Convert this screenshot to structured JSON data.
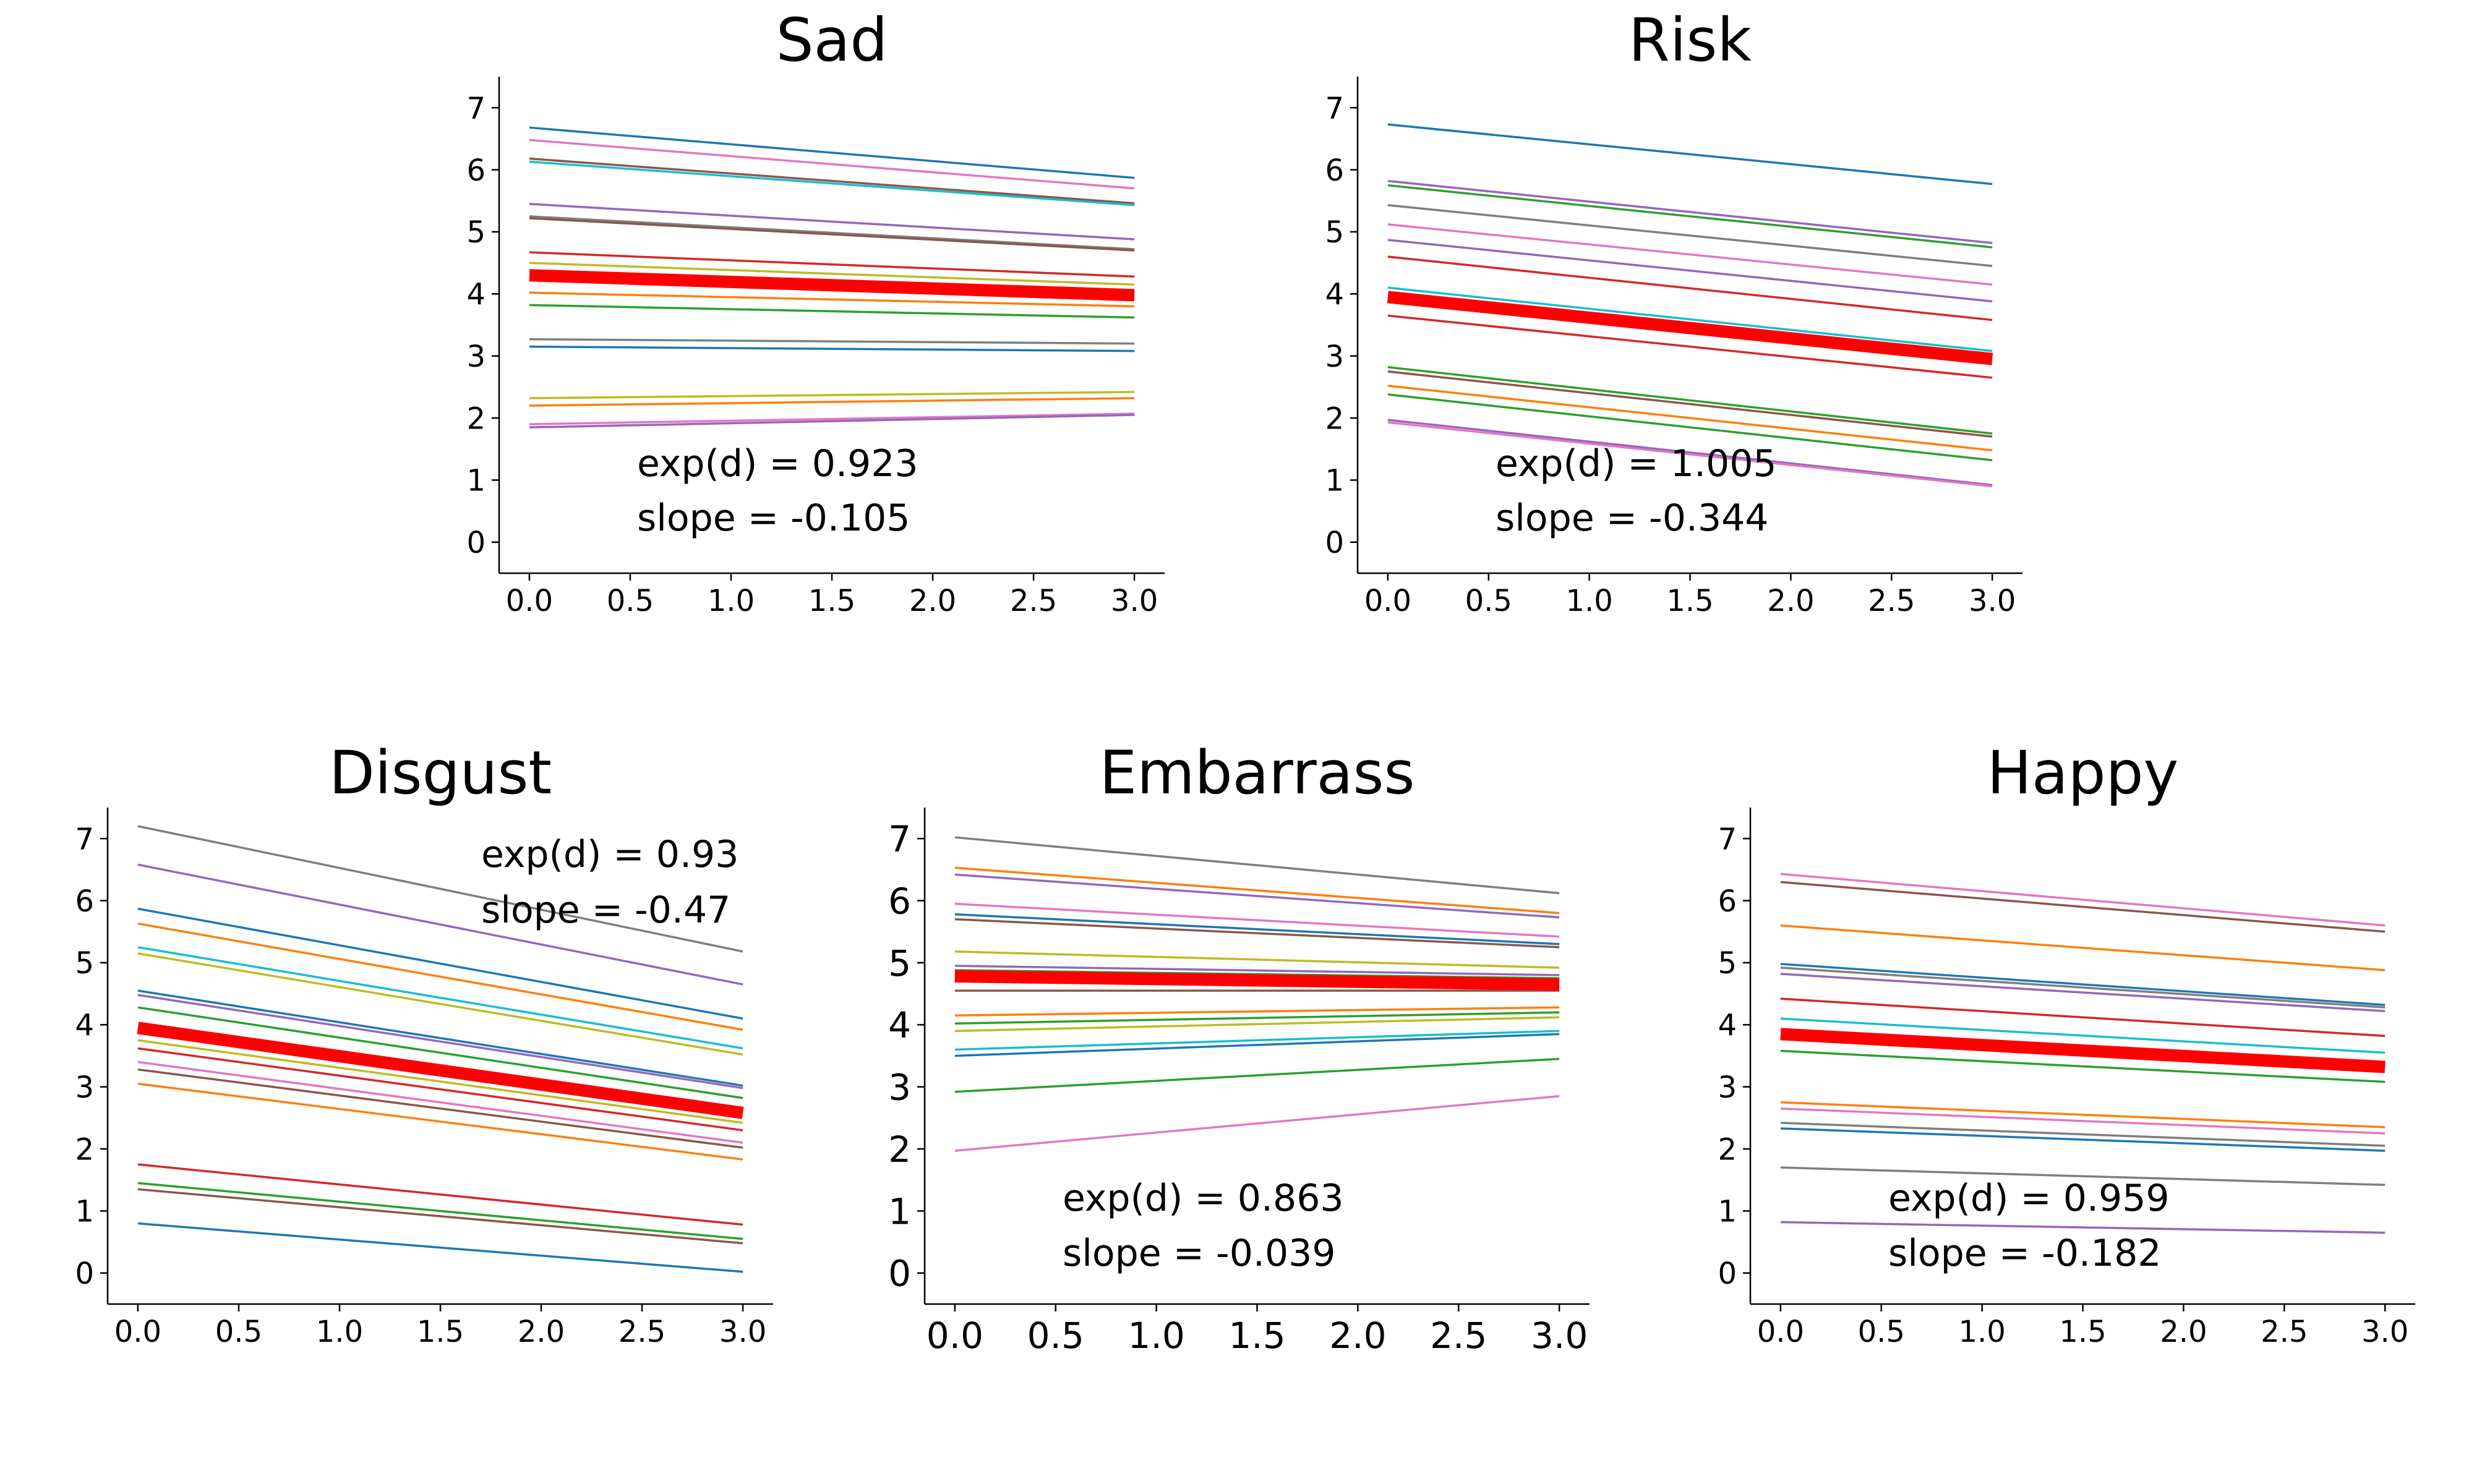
{
  "chart_data": [
    {
      "type": "line",
      "title": "Sad",
      "xlim": [
        -0.15,
        3.15
      ],
      "ylim": [
        -0.5,
        7.5
      ],
      "xticks": [
        0.0,
        0.5,
        1.0,
        1.5,
        2.0,
        2.5,
        3.0
      ],
      "xtick_labels": [
        "0.0",
        "0.5",
        "1.0",
        "1.5",
        "2.0",
        "2.5",
        "3.0"
      ],
      "yticks": [
        0,
        1,
        2,
        3,
        4,
        5,
        6,
        7
      ],
      "ytick_labels": [
        "0",
        "1",
        "2",
        "3",
        "4",
        "5",
        "6",
        "7"
      ],
      "annotations": [
        "exp(d) = 0.923",
        "slope = -0.105"
      ],
      "annotation_position": "lower-left",
      "mean_line": {
        "x": [
          0,
          3
        ],
        "y": [
          4.3,
          3.98
        ],
        "color": "#ff0000"
      },
      "series": [
        {
          "color": "#1f77b4",
          "x": [
            0,
            3
          ],
          "y": [
            6.68,
            5.87
          ]
        },
        {
          "color": "#e377c2",
          "x": [
            0,
            3
          ],
          "y": [
            6.48,
            5.7
          ]
        },
        {
          "color": "#8c564b",
          "x": [
            0,
            3
          ],
          "y": [
            6.18,
            5.46
          ]
        },
        {
          "color": "#17becf",
          "x": [
            0,
            3
          ],
          "y": [
            6.13,
            5.43
          ]
        },
        {
          "color": "#9467bd",
          "x": [
            0,
            3
          ],
          "y": [
            5.45,
            4.88
          ]
        },
        {
          "color": "#7f7f7f",
          "x": [
            0,
            3
          ],
          "y": [
            5.25,
            4.72
          ]
        },
        {
          "color": "#8c564b",
          "x": [
            0,
            3
          ],
          "y": [
            5.22,
            4.7
          ]
        },
        {
          "color": "#d62728",
          "x": [
            0,
            3
          ],
          "y": [
            4.67,
            4.28
          ]
        },
        {
          "color": "#bcbd22",
          "x": [
            0,
            3
          ],
          "y": [
            4.5,
            4.15
          ]
        },
        {
          "color": "#ff7f0e",
          "x": [
            0,
            3
          ],
          "y": [
            4.02,
            3.8
          ]
        },
        {
          "color": "#2ca02c",
          "x": [
            0,
            3
          ],
          "y": [
            3.82,
            3.62
          ]
        },
        {
          "color": "#7f7f7f",
          "x": [
            0,
            3
          ],
          "y": [
            3.27,
            3.2
          ]
        },
        {
          "color": "#1f77b4",
          "x": [
            0,
            3
          ],
          "y": [
            3.15,
            3.08
          ]
        },
        {
          "color": "#bcbd22",
          "x": [
            0,
            3
          ],
          "y": [
            2.32,
            2.42
          ]
        },
        {
          "color": "#ff7f0e",
          "x": [
            0,
            3
          ],
          "y": [
            2.2,
            2.32
          ]
        },
        {
          "color": "#e377c2",
          "x": [
            0,
            3
          ],
          "y": [
            1.9,
            2.07
          ]
        },
        {
          "color": "#9467bd",
          "x": [
            0,
            3
          ],
          "y": [
            1.85,
            2.05
          ]
        }
      ]
    },
    {
      "type": "line",
      "title": "Risk",
      "xlim": [
        -0.15,
        3.15
      ],
      "ylim": [
        -0.5,
        7.5
      ],
      "xticks": [
        0.0,
        0.5,
        1.0,
        1.5,
        2.0,
        2.5,
        3.0
      ],
      "xtick_labels": [
        "0.0",
        "0.5",
        "1.0",
        "1.5",
        "2.0",
        "2.5",
        "3.0"
      ],
      "yticks": [
        0,
        1,
        2,
        3,
        4,
        5,
        6,
        7
      ],
      "ytick_labels": [
        "0",
        "1",
        "2",
        "3",
        "4",
        "5",
        "6",
        "7"
      ],
      "annotations": [
        "exp(d) = 1.005",
        "slope = -0.344"
      ],
      "annotation_position": "lower-left",
      "mean_line": {
        "x": [
          0,
          3
        ],
        "y": [
          3.95,
          2.95
        ],
        "color": "#ff0000"
      },
      "series": [
        {
          "color": "#1f77b4",
          "x": [
            0,
            3
          ],
          "y": [
            6.73,
            5.77
          ]
        },
        {
          "color": "#9467bd",
          "x": [
            0,
            3
          ],
          "y": [
            5.82,
            4.82
          ]
        },
        {
          "color": "#2ca02c",
          "x": [
            0,
            3
          ],
          "y": [
            5.75,
            4.75
          ]
        },
        {
          "color": "#7f7f7f",
          "x": [
            0,
            3
          ],
          "y": [
            5.43,
            4.45
          ]
        },
        {
          "color": "#e377c2",
          "x": [
            0,
            3
          ],
          "y": [
            5.12,
            4.15
          ]
        },
        {
          "color": "#9467bd",
          "x": [
            0,
            3
          ],
          "y": [
            4.87,
            3.88
          ]
        },
        {
          "color": "#d62728",
          "x": [
            0,
            3
          ],
          "y": [
            4.6,
            3.58
          ]
        },
        {
          "color": "#17becf",
          "x": [
            0,
            3
          ],
          "y": [
            4.1,
            3.08
          ]
        },
        {
          "color": "#bcbd22",
          "x": [
            0,
            3
          ],
          "y": [
            3.92,
            2.88
          ]
        },
        {
          "color": "#d62728",
          "x": [
            0,
            3
          ],
          "y": [
            3.65,
            2.65
          ]
        },
        {
          "color": "#2ca02c",
          "x": [
            0,
            3
          ],
          "y": [
            2.82,
            1.75
          ]
        },
        {
          "color": "#8c564b",
          "x": [
            0,
            3
          ],
          "y": [
            2.75,
            1.7
          ]
        },
        {
          "color": "#ff7f0e",
          "x": [
            0,
            3
          ],
          "y": [
            2.52,
            1.48
          ]
        },
        {
          "color": "#2ca02c",
          "x": [
            0,
            3
          ],
          "y": [
            2.38,
            1.32
          ]
        },
        {
          "color": "#9467bd",
          "x": [
            0,
            3
          ],
          "y": [
            1.97,
            0.92
          ]
        },
        {
          "color": "#e377c2",
          "x": [
            0,
            3
          ],
          "y": [
            1.93,
            0.9
          ]
        }
      ]
    },
    {
      "type": "line",
      "title": "Disgust",
      "xlim": [
        -0.15,
        3.15
      ],
      "ylim": [
        -0.5,
        7.5
      ],
      "xticks": [
        0.0,
        0.5,
        1.0,
        1.5,
        2.0,
        2.5,
        3.0
      ],
      "xtick_labels": [
        "0.0",
        "0.5",
        "1.0",
        "1.5",
        "2.0",
        "2.5",
        "3.0"
      ],
      "yticks": [
        0,
        1,
        2,
        3,
        4,
        5,
        6,
        7
      ],
      "ytick_labels": [
        "0",
        "1",
        "2",
        "3",
        "4",
        "5",
        "6",
        "7"
      ],
      "annotations": [
        "exp(d) = 0.93",
        "slope = -0.47"
      ],
      "annotation_position": "upper-right",
      "mean_line": {
        "x": [
          0,
          3
        ],
        "y": [
          3.95,
          2.58
        ],
        "color": "#ff0000"
      },
      "series": [
        {
          "color": "#7f7f7f",
          "x": [
            0,
            3
          ],
          "y": [
            7.2,
            5.18
          ]
        },
        {
          "color": "#9467bd",
          "x": [
            0,
            3
          ],
          "y": [
            6.58,
            4.65
          ]
        },
        {
          "color": "#1f77b4",
          "x": [
            0,
            3
          ],
          "y": [
            5.87,
            4.1
          ]
        },
        {
          "color": "#ff7f0e",
          "x": [
            0,
            3
          ],
          "y": [
            5.63,
            3.92
          ]
        },
        {
          "color": "#17becf",
          "x": [
            0,
            3
          ],
          "y": [
            5.25,
            3.62
          ]
        },
        {
          "color": "#bcbd22",
          "x": [
            0,
            3
          ],
          "y": [
            5.15,
            3.52
          ]
        },
        {
          "color": "#1f77b4",
          "x": [
            0,
            3
          ],
          "y": [
            4.55,
            3.02
          ]
        },
        {
          "color": "#9467bd",
          "x": [
            0,
            3
          ],
          "y": [
            4.48,
            2.98
          ]
        },
        {
          "color": "#2ca02c",
          "x": [
            0,
            3
          ],
          "y": [
            4.28,
            2.82
          ]
        },
        {
          "color": "#bcbd22",
          "x": [
            0,
            3
          ],
          "y": [
            3.75,
            2.42
          ]
        },
        {
          "color": "#d62728",
          "x": [
            0,
            3
          ],
          "y": [
            3.62,
            2.3
          ]
        },
        {
          "color": "#e377c2",
          "x": [
            0,
            3
          ],
          "y": [
            3.4,
            2.1
          ]
        },
        {
          "color": "#8c564b",
          "x": [
            0,
            3
          ],
          "y": [
            3.28,
            2.02
          ]
        },
        {
          "color": "#ff7f0e",
          "x": [
            0,
            3
          ],
          "y": [
            3.05,
            1.83
          ]
        },
        {
          "color": "#d62728",
          "x": [
            0,
            3
          ],
          "y": [
            1.75,
            0.78
          ]
        },
        {
          "color": "#2ca02c",
          "x": [
            0,
            3
          ],
          "y": [
            1.45,
            0.55
          ]
        },
        {
          "color": "#8c564b",
          "x": [
            0,
            3
          ],
          "y": [
            1.35,
            0.48
          ]
        },
        {
          "color": "#1f77b4",
          "x": [
            0,
            3
          ],
          "y": [
            0.8,
            0.02
          ]
        }
      ]
    },
    {
      "type": "line",
      "title": "Embarrass",
      "xlim": [
        -0.15,
        3.15
      ],
      "ylim": [
        -0.5,
        7.5
      ],
      "xticks": [
        0.0,
        0.5,
        1.0,
        1.5,
        2.0,
        2.5,
        3.0
      ],
      "xtick_labels": [
        "0.0",
        "0.5",
        "1.0",
        "1.5",
        "2.0",
        "2.5",
        "3.0"
      ],
      "yticks": [
        0,
        1,
        2,
        3,
        4,
        5,
        6,
        7
      ],
      "ytick_labels": [
        "0",
        "1",
        "2",
        "3",
        "4",
        "5",
        "6",
        "7"
      ],
      "annotations": [
        "exp(d) = 0.863",
        "slope = -0.039"
      ],
      "annotation_position": "lower-left",
      "mean_line": {
        "x": [
          0,
          3
        ],
        "y": [
          4.78,
          4.65
        ],
        "color": "#ff0000"
      },
      "series": [
        {
          "color": "#7f7f7f",
          "x": [
            0,
            3
          ],
          "y": [
            7.02,
            6.12
          ]
        },
        {
          "color": "#ff7f0e",
          "x": [
            0,
            3
          ],
          "y": [
            6.53,
            5.8
          ]
        },
        {
          "color": "#9467bd",
          "x": [
            0,
            3
          ],
          "y": [
            6.42,
            5.73
          ]
        },
        {
          "color": "#e377c2",
          "x": [
            0,
            3
          ],
          "y": [
            5.95,
            5.42
          ]
        },
        {
          "color": "#1f77b4",
          "x": [
            0,
            3
          ],
          "y": [
            5.78,
            5.3
          ]
        },
        {
          "color": "#8c564b",
          "x": [
            0,
            3
          ],
          "y": [
            5.7,
            5.25
          ]
        },
        {
          "color": "#bcbd22",
          "x": [
            0,
            3
          ],
          "y": [
            5.18,
            4.92
          ]
        },
        {
          "color": "#9467bd",
          "x": [
            0,
            3
          ],
          "y": [
            4.95,
            4.8
          ]
        },
        {
          "color": "#2ca02c",
          "x": [
            0,
            3
          ],
          "y": [
            4.88,
            4.75
          ]
        },
        {
          "color": "#8c564b",
          "x": [
            0,
            3
          ],
          "y": [
            4.55,
            4.55
          ]
        },
        {
          "color": "#ff7f0e",
          "x": [
            0,
            3
          ],
          "y": [
            4.15,
            4.28
          ]
        },
        {
          "color": "#2ca02c",
          "x": [
            0,
            3
          ],
          "y": [
            4.02,
            4.2
          ]
        },
        {
          "color": "#bcbd22",
          "x": [
            0,
            3
          ],
          "y": [
            3.9,
            4.12
          ]
        },
        {
          "color": "#17becf",
          "x": [
            0,
            3
          ],
          "y": [
            3.6,
            3.9
          ]
        },
        {
          "color": "#1f77b4",
          "x": [
            0,
            3
          ],
          "y": [
            3.5,
            3.85
          ]
        },
        {
          "color": "#2ca02c",
          "x": [
            0,
            3
          ],
          "y": [
            2.92,
            3.45
          ]
        },
        {
          "color": "#e377c2",
          "x": [
            0,
            3
          ],
          "y": [
            1.97,
            2.85
          ]
        }
      ]
    },
    {
      "type": "line",
      "title": "Happy",
      "xlim": [
        -0.15,
        3.15
      ],
      "ylim": [
        -0.5,
        7.5
      ],
      "xticks": [
        0.0,
        0.5,
        1.0,
        1.5,
        2.0,
        2.5,
        3.0
      ],
      "xtick_labels": [
        "0.0",
        "0.5",
        "1.0",
        "1.5",
        "2.0",
        "2.5",
        "3.0"
      ],
      "yticks": [
        0,
        1,
        2,
        3,
        4,
        5,
        6,
        7
      ],
      "ytick_labels": [
        "0",
        "1",
        "2",
        "3",
        "4",
        "5",
        "6",
        "7"
      ],
      "annotations": [
        "exp(d) = 0.959",
        "slope = -0.182"
      ],
      "annotation_position": "lower-middle",
      "mean_line": {
        "x": [
          0,
          3
        ],
        "y": [
          3.85,
          3.32
        ],
        "color": "#ff0000"
      },
      "series": [
        {
          "color": "#e377c2",
          "x": [
            0,
            3
          ],
          "y": [
            6.43,
            5.6
          ]
        },
        {
          "color": "#8c564b",
          "x": [
            0,
            3
          ],
          "y": [
            6.3,
            5.5
          ]
        },
        {
          "color": "#ff7f0e",
          "x": [
            0,
            3
          ],
          "y": [
            5.6,
            4.88
          ]
        },
        {
          "color": "#1f77b4",
          "x": [
            0,
            3
          ],
          "y": [
            4.98,
            4.32
          ]
        },
        {
          "color": "#7f7f7f",
          "x": [
            0,
            3
          ],
          "y": [
            4.92,
            4.28
          ]
        },
        {
          "color": "#9467bd",
          "x": [
            0,
            3
          ],
          "y": [
            4.82,
            4.22
          ]
        },
        {
          "color": "#d62728",
          "x": [
            0,
            3
          ],
          "y": [
            4.42,
            3.82
          ]
        },
        {
          "color": "#17becf",
          "x": [
            0,
            3
          ],
          "y": [
            4.1,
            3.55
          ]
        },
        {
          "color": "#2ca02c",
          "x": [
            0,
            3
          ],
          "y": [
            3.58,
            3.08
          ]
        },
        {
          "color": "#ff7f0e",
          "x": [
            0,
            3
          ],
          "y": [
            2.75,
            2.35
          ]
        },
        {
          "color": "#e377c2",
          "x": [
            0,
            3
          ],
          "y": [
            2.65,
            2.25
          ]
        },
        {
          "color": "#7f7f7f",
          "x": [
            0,
            3
          ],
          "y": [
            2.42,
            2.05
          ]
        },
        {
          "color": "#1f77b4",
          "x": [
            0,
            3
          ],
          "y": [
            2.33,
            1.97
          ]
        },
        {
          "color": "#7f7f7f",
          "x": [
            0,
            3
          ],
          "y": [
            1.7,
            1.42
          ]
        },
        {
          "color": "#9467bd",
          "x": [
            0,
            3
          ],
          "y": [
            0.82,
            0.65
          ]
        }
      ]
    }
  ]
}
